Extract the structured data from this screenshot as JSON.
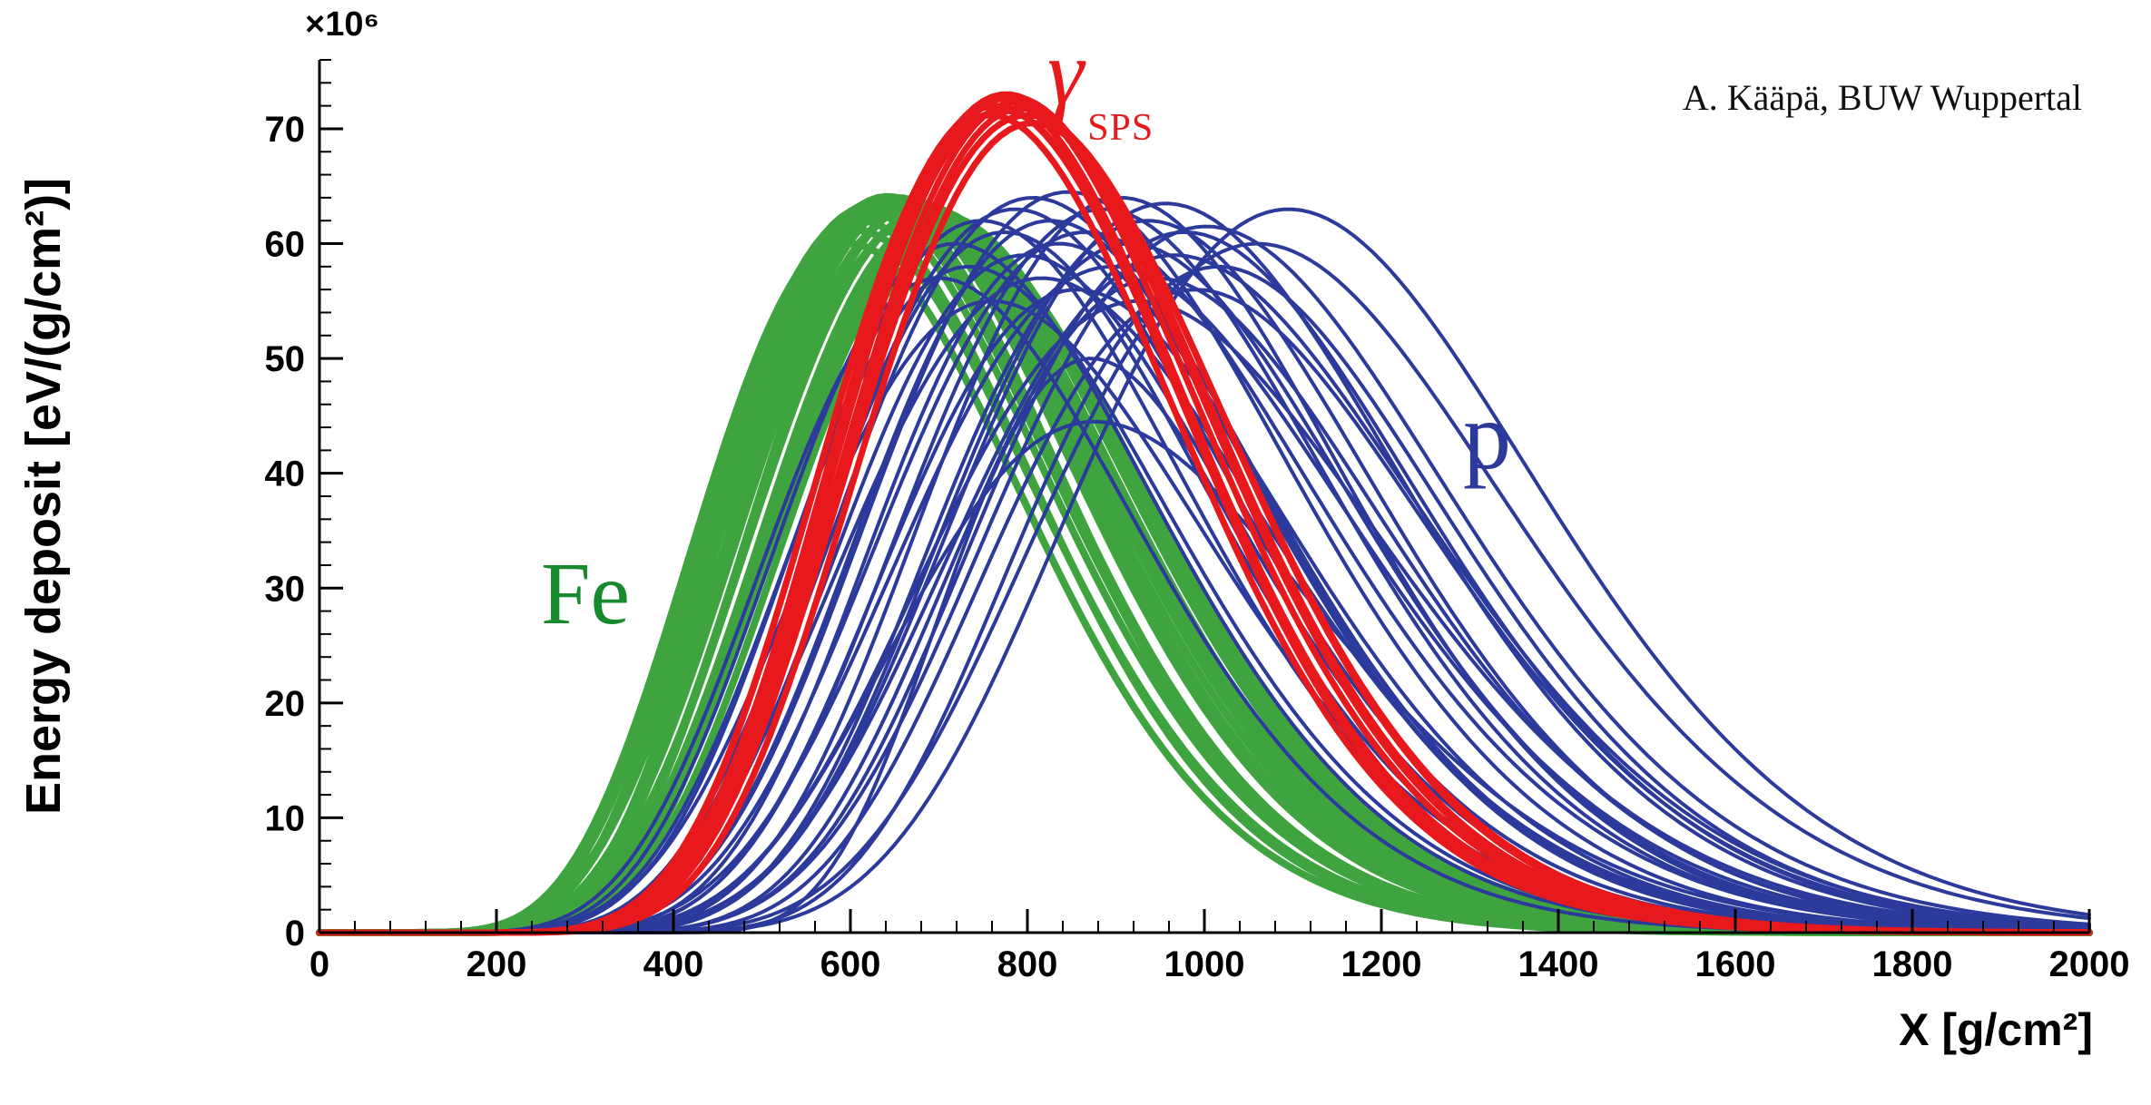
{
  "chart_data": {
    "type": "line",
    "title": "",
    "xlabel": "X [g/cm²]",
    "ylabel": "Energy deposit [eV/(g/cm²)]",
    "y_scale_label": "×10⁶",
    "annotation": "A. Kääpä, BUW Wuppertal",
    "x_range": [
      0,
      2000
    ],
    "y_range": [
      0,
      76
    ],
    "x_ticks": {
      "major": 200,
      "minor": 40
    },
    "y_ticks": {
      "major": 10,
      "minor": 2
    },
    "grid": false,
    "legend_position": "none",
    "curve_model": "gaisser_hillas, curve params = [Xmax g/cm², peak ×10⁶ eV/(g/cm²), X0, lambda]",
    "series": [
      {
        "name": "fe",
        "label": "Fe",
        "color": "#3fa43f",
        "label_color": "#178a2e",
        "stroke_width": 8,
        "curves": [
          [
            600,
            60.0,
            40,
            60
          ],
          [
            606,
            61.2,
            20,
            62
          ],
          [
            612,
            62.0,
            60,
            61
          ],
          [
            618,
            62.8,
            30,
            63
          ],
          [
            624,
            63.3,
            10,
            62
          ],
          [
            630,
            63.6,
            50,
            64
          ],
          [
            636,
            63.9,
            70,
            62
          ],
          [
            642,
            64.1,
            30,
            64
          ],
          [
            648,
            63.7,
            10,
            63
          ],
          [
            654,
            64.0,
            60,
            65
          ],
          [
            660,
            63.4,
            30,
            64
          ],
          [
            666,
            63.8,
            50,
            66
          ],
          [
            672,
            63.1,
            20,
            64
          ],
          [
            678,
            63.5,
            70,
            66
          ],
          [
            684,
            62.7,
            40,
            65
          ],
          [
            690,
            63.0,
            10,
            64
          ],
          [
            696,
            62.2,
            60,
            66
          ],
          [
            702,
            62.5,
            30,
            65
          ],
          [
            708,
            61.6,
            50,
            64
          ],
          [
            714,
            61.0,
            20,
            63
          ],
          [
            720,
            60.3,
            40,
            62
          ],
          [
            640,
            62.5,
            80,
            61
          ],
          [
            658,
            63.9,
            0,
            66
          ],
          [
            676,
            62.0,
            40,
            63
          ],
          [
            694,
            61.4,
            70,
            61
          ],
          [
            710,
            60.6,
            10,
            65
          ]
        ]
      },
      {
        "name": "p",
        "label": "p",
        "color": "#2c3a9c",
        "label_color": "#2c3a9c",
        "stroke_width": 4,
        "curves": [
          [
            700,
            57.0,
            20,
            64
          ],
          [
            718,
            60.0,
            40,
            66
          ],
          [
            734,
            58.0,
            30,
            65
          ],
          [
            748,
            62.0,
            50,
            68
          ],
          [
            760,
            55.0,
            20,
            70
          ],
          [
            774,
            61.0,
            60,
            66
          ],
          [
            786,
            63.0,
            40,
            69
          ],
          [
            796,
            59.0,
            70,
            67
          ],
          [
            806,
            64.0,
            50,
            70
          ],
          [
            816,
            57.0,
            30,
            72
          ],
          [
            826,
            62.0,
            70,
            68
          ],
          [
            836,
            60.0,
            90,
            66
          ],
          [
            846,
            64.5,
            60,
            71
          ],
          [
            856,
            56.0,
            100,
            69
          ],
          [
            866,
            61.0,
            50,
            73
          ],
          [
            876,
            44.5,
            120,
            75
          ],
          [
            886,
            63.0,
            70,
            70
          ],
          [
            896,
            58.0,
            40,
            74
          ],
          [
            906,
            64.0,
            90,
            68
          ],
          [
            916,
            60.0,
            140,
            72
          ],
          [
            926,
            55.0,
            60,
            76
          ],
          [
            936,
            62.0,
            100,
            70
          ],
          [
            946,
            57.0,
            160,
            74
          ],
          [
            956,
            63.5,
            70,
            71
          ],
          [
            966,
            59.0,
            50,
            75
          ],
          [
            978,
            61.0,
            120,
            72
          ],
          [
            990,
            56.0,
            180,
            76
          ],
          [
            1002,
            61.5,
            90,
            73
          ],
          [
            1016,
            58.0,
            220,
            74
          ],
          [
            1060,
            60.0,
            110,
            74
          ],
          [
            1095,
            63.0,
            130,
            72
          ],
          [
            872,
            50.0,
            310,
            56
          ]
        ]
      },
      {
        "name": "gamma-sps",
        "label": "γ",
        "sublabel": "SPS",
        "color": "#e8191c",
        "label_color": "#e8191c",
        "stroke_width": 7,
        "curves": [
          [
            758,
            71.2,
            60,
            58
          ],
          [
            764,
            72.0,
            50,
            59
          ],
          [
            770,
            72.6,
            70,
            58
          ],
          [
            776,
            73.0,
            60,
            59
          ],
          [
            782,
            72.8,
            50,
            60
          ],
          [
            788,
            72.3,
            70,
            59
          ],
          [
            794,
            71.8,
            60,
            58
          ],
          [
            800,
            71.2,
            50,
            60
          ],
          [
            806,
            70.5,
            70,
            59
          ],
          [
            772,
            71.6,
            80,
            57
          ]
        ]
      }
    ]
  }
}
